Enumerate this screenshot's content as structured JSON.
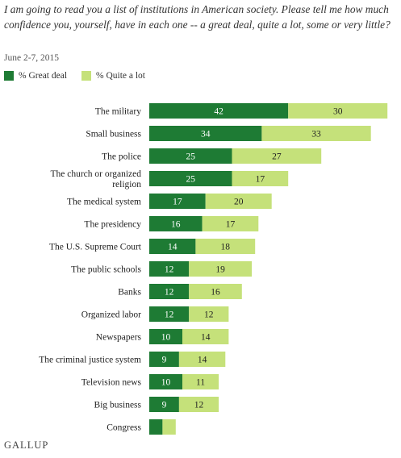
{
  "header": {
    "question": "I am going to read you a list of institutions in American society. Please tell me how much confidence you, yourself, have in each one -- a great deal, quite a lot, some or very little?",
    "date": "June 2-7, 2015"
  },
  "footer": {
    "logo": "GALLUP"
  },
  "colors": {
    "great_deal": "#1e7b34",
    "quite_a_lot": "#c5e17a"
  },
  "chart_data": {
    "type": "bar",
    "orientation": "horizontal",
    "stacked": true,
    "categories": [
      "The military",
      "Small business",
      "The police",
      "The church or organized religion",
      "The medical system",
      "The presidency",
      "The U.S. Supreme Court",
      "The public schools",
      "Banks",
      "Organized labor",
      "Newspapers",
      "The criminal justice system",
      "Television news",
      "Big business",
      "Congress"
    ],
    "category_lines": [
      [
        "The military"
      ],
      [
        "Small business"
      ],
      [
        "The police"
      ],
      [
        "The church or organized",
        "religion"
      ],
      [
        "The medical system"
      ],
      [
        "The presidency"
      ],
      [
        "The U.S. Supreme Court"
      ],
      [
        "The public schools"
      ],
      [
        "Banks"
      ],
      [
        "Organized labor"
      ],
      [
        "Newspapers"
      ],
      [
        "The criminal justice system"
      ],
      [
        "Television news"
      ],
      [
        "Big business"
      ],
      [
        "Congress"
      ]
    ],
    "series": [
      {
        "name": "% Great deal",
        "values": [
          42,
          34,
          25,
          25,
          17,
          16,
          14,
          12,
          12,
          12,
          10,
          9,
          10,
          9,
          4
        ]
      },
      {
        "name": "% Quite a lot",
        "values": [
          30,
          33,
          27,
          17,
          20,
          17,
          18,
          19,
          16,
          12,
          14,
          14,
          11,
          12,
          4
        ]
      }
    ],
    "data_labels": {
      "% Great deal": [
        "42",
        "34",
        "25",
        "25",
        "17",
        "16",
        "14",
        "12",
        "12",
        "12",
        "10",
        "9",
        "10",
        "9",
        ""
      ],
      "% Quite a lot": [
        "30",
        "33",
        "27",
        "17",
        "20",
        "17",
        "18",
        "19",
        "16",
        "12",
        "14",
        "14",
        "11",
        "12",
        ""
      ]
    },
    "legend_position": "top-left",
    "grid": false
  }
}
